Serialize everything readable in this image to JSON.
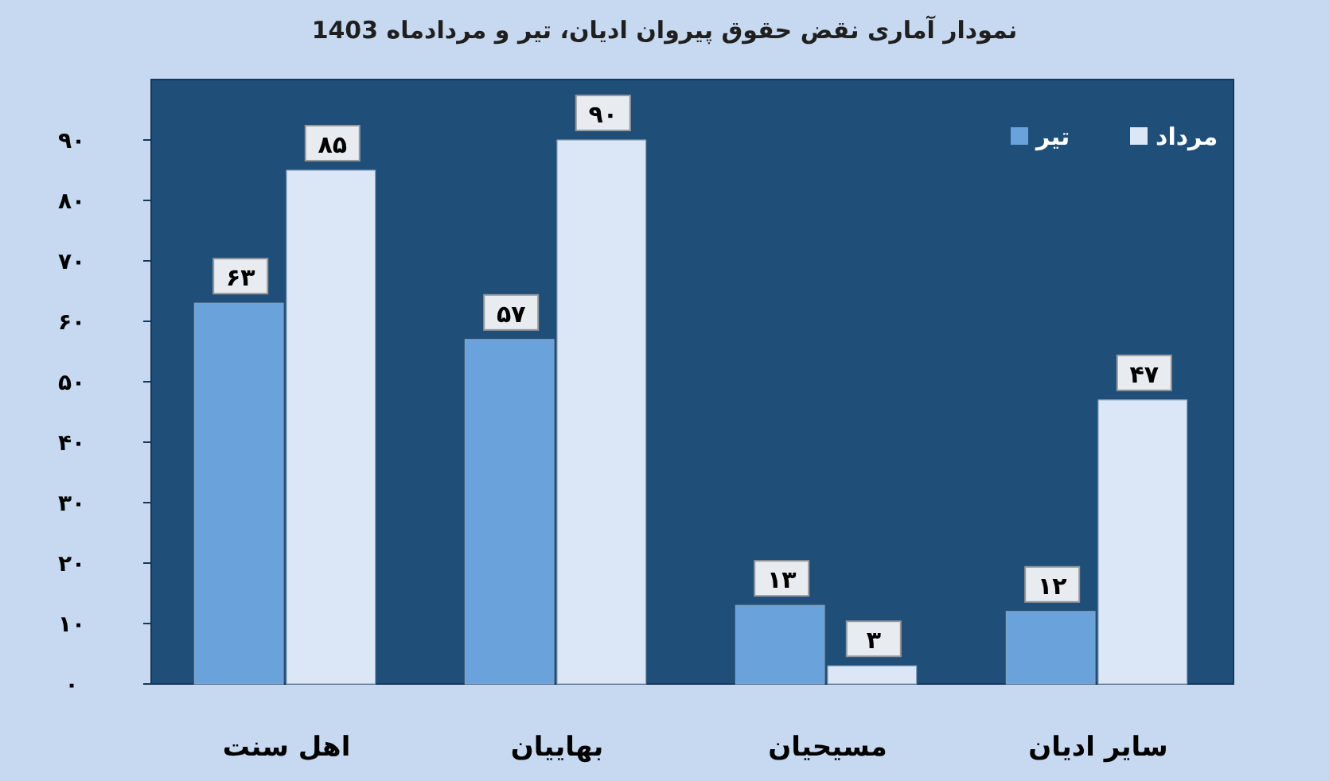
{
  "chart_data": {
    "type": "bar",
    "title": "نمودار آماری نقض حقوق پیروان ادیان، تیر و مردادماه 1403",
    "categories": [
      "اهل سنت",
      "بهاییان",
      "مسیحیان",
      "سایر ادیان"
    ],
    "series": [
      {
        "name": "تیر",
        "color": "#6aa3dc",
        "values": [
          63,
          57,
          13,
          12
        ],
        "value_labels": [
          "۶۳",
          "۵۷",
          "۱۳",
          "۱۲"
        ]
      },
      {
        "name": "مرداد",
        "color": "#dbe7f6",
        "values": [
          85,
          90,
          3,
          47
        ],
        "value_labels": [
          "۸۵",
          "۹۰",
          "۳",
          "۴۷"
        ]
      }
    ],
    "ylim": [
      0,
      100
    ],
    "yticks": [
      {
        "value": 0,
        "label": "۰"
      },
      {
        "value": 10,
        "label": "۱۰"
      },
      {
        "value": 20,
        "label": "۲۰"
      },
      {
        "value": 30,
        "label": "۳۰"
      },
      {
        "value": 40,
        "label": "۴۰"
      },
      {
        "value": 50,
        "label": "۵۰"
      },
      {
        "value": 60,
        "label": "۶۰"
      },
      {
        "value": 70,
        "label": "۷۰"
      },
      {
        "value": 80,
        "label": "۸۰"
      },
      {
        "value": 90,
        "label": "۹۰"
      }
    ],
    "legend": "top right"
  }
}
